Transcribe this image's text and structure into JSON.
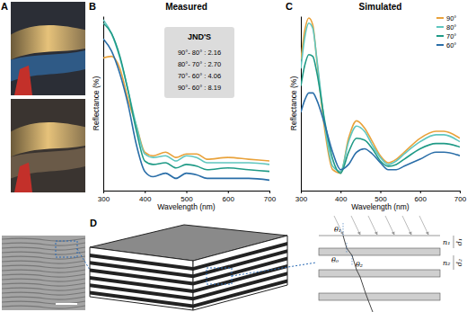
{
  "panels": [
    "A",
    "B",
    "C",
    "D"
  ],
  "chart_data": [
    {
      "type": "line",
      "title": "Measured",
      "x_label": "Wavelength (nm)",
      "y_label": "Reflectance (%)",
      "x": [
        300,
        320,
        340,
        360,
        380,
        400,
        420,
        450,
        475,
        500,
        525,
        550,
        600,
        650,
        700
      ],
      "xlim": [
        300,
        700
      ],
      "xticks": [
        300,
        400,
        500,
        600,
        700
      ],
      "ylim": [
        0,
        100
      ],
      "yticks": [],
      "tick_labels": "x",
      "annotations": [
        "JND'S",
        "90°- 80° : 2.16",
        "80°- 70° : 2.70",
        "70°- 60° : 4.06",
        "90°- 60° : 8.19"
      ],
      "series": [
        {
          "color": "#e9a23b",
          "values": [
            76,
            77,
            70,
            52,
            37,
            22,
            20,
            22,
            19,
            21,
            21,
            18,
            19,
            18,
            17
          ]
        },
        {
          "color": "#5fc6bf",
          "values": [
            98,
            90,
            76,
            57,
            37,
            21,
            19,
            20,
            17,
            20,
            19,
            16,
            16,
            16,
            15
          ]
        },
        {
          "color": "#1f9a86",
          "values": [
            96,
            90,
            77,
            57,
            34,
            17,
            15,
            16,
            13,
            15,
            14,
            12,
            13,
            12,
            11
          ]
        },
        {
          "color": "#2a6ea8",
          "values": [
            87,
            80,
            67,
            49,
            26,
            11,
            8,
            10,
            7,
            10,
            9,
            7,
            7,
            7,
            6
          ]
        }
      ]
    },
    {
      "type": "line",
      "title": "Simulated",
      "x_label": "Wavelength (nm)",
      "y_label": "Reflectance (%)",
      "x": [
        300,
        310,
        320,
        330,
        340,
        360,
        380,
        400,
        420,
        440,
        460,
        480,
        500,
        520,
        540,
        560,
        600,
        640,
        660,
        700
      ],
      "xlim": [
        300,
        700
      ],
      "xticks": [
        300,
        400,
        500,
        600,
        700
      ],
      "ylim": [
        0,
        100
      ],
      "yticks": [],
      "tick_labels": "x",
      "legend": "top-right",
      "series": [
        {
          "name": "90°",
          "color": "#e9a23b",
          "values": [
            75,
            92,
            99,
            95,
            75,
            35,
            12,
            10,
            30,
            40,
            36,
            28,
            20,
            16,
            18,
            22,
            30,
            34,
            34,
            30
          ]
        },
        {
          "name": "80°",
          "color": "#5fc6bf",
          "values": [
            70,
            88,
            96,
            93,
            76,
            38,
            14,
            11,
            28,
            37,
            34,
            26,
            19,
            15,
            17,
            21,
            28,
            32,
            32,
            28
          ]
        },
        {
          "name": "70°",
          "color": "#1f9a86",
          "values": [
            60,
            72,
            78,
            77,
            68,
            40,
            18,
            10,
            22,
            30,
            29,
            24,
            17,
            14,
            15,
            18,
            24,
            27,
            27,
            25
          ]
        },
        {
          "name": "60°",
          "color": "#2a6ea8",
          "values": [
            45,
            52,
            56,
            56,
            52,
            38,
            22,
            12,
            15,
            22,
            24,
            21,
            16,
            12,
            12,
            14,
            18,
            22,
            22,
            20
          ]
        }
      ]
    }
  ],
  "diagram": {
    "labels": [
      "θ₁",
      "θ₀",
      "θ₂",
      "n₁",
      "n₂",
      "d₁",
      "d₂"
    ]
  }
}
